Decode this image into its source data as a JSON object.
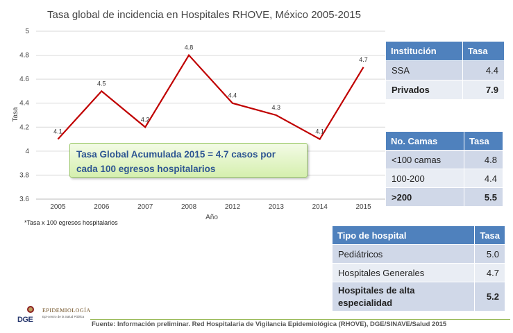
{
  "chart_data": {
    "type": "line",
    "title": "Tasa global de incidencia en Hospitales RHOVE, México 2005-2015",
    "xlabel": "Año",
    "ylabel": "Tasa",
    "categories": [
      "2005",
      "2006",
      "2007",
      "2008",
      "2012",
      "2013",
      "2014",
      "2015"
    ],
    "series": [
      {
        "values": [
          4.1,
          4.5,
          4.2,
          4.8,
          4.4,
          4.3,
          4.1,
          4.7
        ],
        "color": "#c00000"
      }
    ],
    "data_labels": [
      "4.1",
      "4.5",
      "4.2",
      "4.8",
      "4.4",
      "4.3",
      "4.1",
      "4.7"
    ],
    "ylim": [
      3.6,
      5
    ],
    "yticks": [
      "3.6",
      "3.8",
      "4",
      "4.2",
      "4.4",
      "4.6",
      "4.8",
      "5"
    ],
    "grid": true,
    "legend": "none"
  },
  "callout": {
    "line1": "Tasa Global Acumulada 2015 =  4.7 casos por",
    "line2": "cada 100 egresos hospitalarios"
  },
  "footnote": "*Tasa x 100 egresos hospitalarios",
  "table_institucion": {
    "headers": [
      "Institución",
      "Tasa"
    ],
    "rows": [
      [
        "SSA",
        "4.4"
      ],
      [
        "Privados",
        "7.9"
      ]
    ]
  },
  "table_camas": {
    "headers": [
      "No. Camas",
      "Tasa"
    ],
    "rows": [
      [
        "<100 camas",
        "4.8"
      ],
      [
        "100-200",
        "4.4"
      ],
      [
        ">200",
        "5.5"
      ]
    ]
  },
  "table_tipo": {
    "headers": [
      "Tipo de hospital",
      "Tasa"
    ],
    "rows": [
      [
        "Pediátricos",
        "5.0"
      ],
      [
        "Hospitales Generales",
        "4.7"
      ],
      [
        "Hospitales de alta especialidad",
        "5.2"
      ]
    ]
  },
  "logo": {
    "dge": "DGE",
    "name": "EPIDEMIOLOGÍA",
    "tagline": "Epi-centro de la Salud Pública"
  },
  "source": "Fuente: Información preliminar. Red Hospitalaria de Vigilancia Epidemiológica (RHOVE), DGE/SINAVE/Salud 2015",
  "colors": {
    "line": "#c00000",
    "table_header": "#4f81bd",
    "callout_text": "#2d5592"
  }
}
